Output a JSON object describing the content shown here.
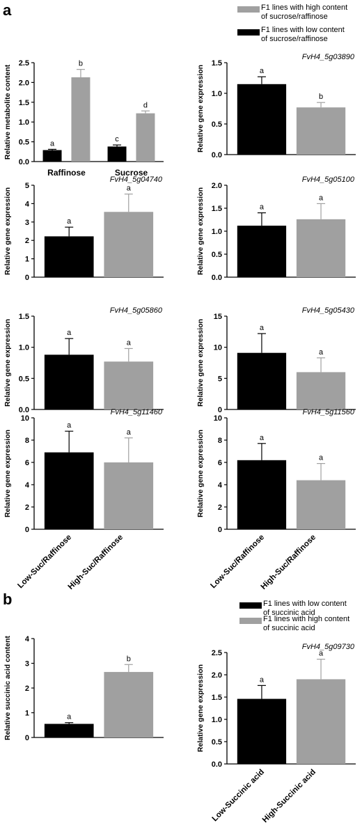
{
  "panel_labels": {
    "a": "a",
    "b": "b"
  },
  "legends": {
    "a": [
      {
        "text": [
          "F1 lines with high content",
          "of sucrose/raffinose"
        ],
        "color": "#a0a0a0"
      },
      {
        "text": [
          "F1 lines with low content",
          "of sucrose/raffinose"
        ],
        "color": "#000000"
      }
    ],
    "b": [
      {
        "text": [
          "F1 lines with low content",
          "of succinic acid"
        ],
        "color": "#000000"
      },
      {
        "text": [
          "F1 lines with high content",
          "of succinic acid"
        ],
        "color": "#a0a0a0"
      }
    ]
  },
  "shared_xticks": {
    "a": [
      "Low-Suc/Raffinose",
      "High-Suc/Raffinose"
    ],
    "b": [
      "Low-Succinic acid",
      "High-Succinic acid"
    ]
  },
  "colors": {
    "low": "#000000",
    "high": "#a0a0a0"
  },
  "chart_data": [
    {
      "type": "bar",
      "title": "",
      "ylabel": "Relative metabolite content",
      "categories": [
        "Raffinose",
        "Sucrose"
      ],
      "series": [
        {
          "name": "F1 lines with low content of sucrose/raffinose",
          "values": [
            0.29,
            0.38
          ],
          "errors": [
            0.02,
            0.04
          ],
          "letters": [
            "a",
            "c"
          ]
        },
        {
          "name": "F1 lines with high content of sucrose/raffinose",
          "values": [
            2.13,
            1.22
          ],
          "errors": [
            0.2,
            0.06
          ],
          "letters": [
            "b",
            "d"
          ]
        }
      ],
      "ylim": [
        0,
        2.5
      ],
      "yticks": [
        "0.0",
        "0.5",
        "1.0",
        "1.5",
        "2.0",
        "2.5"
      ]
    },
    {
      "type": "bar",
      "title": "FvH4_5g03890",
      "ylabel": "Relative gene expression",
      "categories": [
        "Low-Suc/Raffinose",
        "High-Suc/Raffinose"
      ],
      "values": [
        1.15,
        0.77
      ],
      "errors": [
        0.12,
        0.08
      ],
      "letters": [
        "a",
        "b"
      ],
      "ylim": [
        0,
        1.5
      ],
      "yticks": [
        "0.0",
        "0.5",
        "1.0",
        "1.5"
      ]
    },
    {
      "type": "bar",
      "title": "FvH4_5g04740",
      "ylabel": "Relative gene expression",
      "categories": [
        "Low-Suc/Raffinose",
        "High-Suc/Raffinose"
      ],
      "values": [
        2.22,
        3.55
      ],
      "errors": [
        0.5,
        0.97
      ],
      "letters": [
        "a",
        "a"
      ],
      "ylim": [
        0,
        5
      ],
      "yticks": [
        "0",
        "1",
        "2",
        "3",
        "4",
        "5"
      ]
    },
    {
      "type": "bar",
      "title": "FvH4_5g05100",
      "ylabel": "Relative gene expression",
      "categories": [
        "Low-Suc/Raffinose",
        "High-Suc/Raffinose"
      ],
      "values": [
        1.12,
        1.26
      ],
      "errors": [
        0.28,
        0.34
      ],
      "letters": [
        "a",
        "a"
      ],
      "ylim": [
        0,
        2.0
      ],
      "yticks": [
        "0.0",
        "0.5",
        "1.0",
        "1.5",
        "2.0"
      ]
    },
    {
      "type": "bar",
      "title": "FvH4_5g05860",
      "ylabel": "Relative gene expression",
      "categories": [
        "Low-Suc/Raffinose",
        "High-Suc/Raffinose"
      ],
      "values": [
        0.88,
        0.77
      ],
      "errors": [
        0.26,
        0.21
      ],
      "letters": [
        "a",
        "a"
      ],
      "ylim": [
        0,
        1.5
      ],
      "yticks": [
        "0.0",
        "0.5",
        "1.0",
        "1.5"
      ]
    },
    {
      "type": "bar",
      "title": "FvH4_5g05430",
      "ylabel": "Relative gene expression",
      "categories": [
        "Low-Suc/Raffinose",
        "High-Suc/Raffinose"
      ],
      "values": [
        9.1,
        6.0
      ],
      "errors": [
        3.1,
        2.3
      ],
      "letters": [
        "a",
        "a"
      ],
      "ylim": [
        0,
        15
      ],
      "yticks": [
        "0",
        "5",
        "10",
        "15"
      ]
    },
    {
      "type": "bar",
      "title": "FvH4_5g11460",
      "ylabel": "Relative gene expression",
      "categories": [
        "Low-Suc/Raffinose",
        "High-Suc/Raffinose"
      ],
      "values": [
        6.9,
        6.0
      ],
      "errors": [
        1.9,
        2.2
      ],
      "letters": [
        "a",
        "a"
      ],
      "ylim": [
        0,
        10
      ],
      "yticks": [
        "0",
        "2",
        "4",
        "6",
        "8",
        "10"
      ]
    },
    {
      "type": "bar",
      "title": "FvH4_5g11560",
      "ylabel": "Relative gene expression",
      "categories": [
        "Low-Suc/Raffinose",
        "High-Suc/Raffinose"
      ],
      "values": [
        6.2,
        4.4
      ],
      "errors": [
        1.5,
        1.5
      ],
      "letters": [
        "a",
        "a"
      ],
      "ylim": [
        0,
        10
      ],
      "yticks": [
        "0",
        "2",
        "4",
        "6",
        "8",
        "10"
      ]
    },
    {
      "type": "bar",
      "title": "",
      "ylabel": "Relative succinic acid content",
      "categories": [
        "Low-Succinic acid",
        "High-Succinic acid"
      ],
      "values": [
        0.55,
        2.65
      ],
      "errors": [
        0.05,
        0.3
      ],
      "letters": [
        "a",
        "b"
      ],
      "ylim": [
        0,
        4
      ],
      "yticks": [
        "0",
        "1",
        "2",
        "3",
        "4"
      ]
    },
    {
      "type": "bar",
      "title": "FvH4_5g09730",
      "ylabel": "Relative gene expression",
      "categories": [
        "Low-Succinic acid",
        "High-Succinic acid"
      ],
      "values": [
        1.46,
        1.9
      ],
      "errors": [
        0.3,
        0.45
      ],
      "letters": [
        "a",
        "a"
      ],
      "ylim": [
        0,
        2.5
      ],
      "yticks": [
        "0.0",
        "0.5",
        "1.0",
        "1.5",
        "2.0",
        "2.5"
      ]
    }
  ]
}
